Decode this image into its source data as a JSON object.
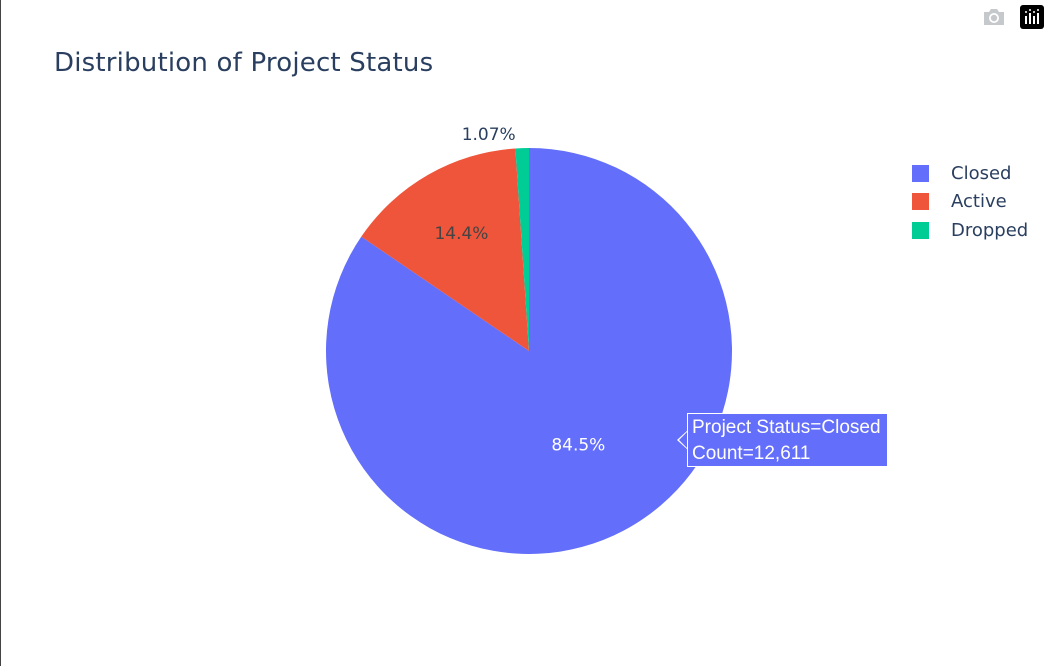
{
  "toolbar": {
    "camera_icon": "camera-icon",
    "plotly_icon": "plotly-logo-icon"
  },
  "chart_data": {
    "type": "pie",
    "title": "Distribution of Project Status",
    "legend_placement": "right",
    "slices": [
      {
        "label": "Closed",
        "percent": 84.5,
        "percent_label": "84.5%",
        "color": "#636efa"
      },
      {
        "label": "Active",
        "percent": 14.4,
        "percent_label": "14.4%",
        "color": "#ef553b"
      },
      {
        "label": "Dropped",
        "percent": 1.07,
        "percent_label": "1.07%",
        "color": "#00cc96"
      }
    ]
  },
  "hover": {
    "line1": "Project Status=Closed",
    "line2": "Count=12,611",
    "color": "#636efa"
  }
}
